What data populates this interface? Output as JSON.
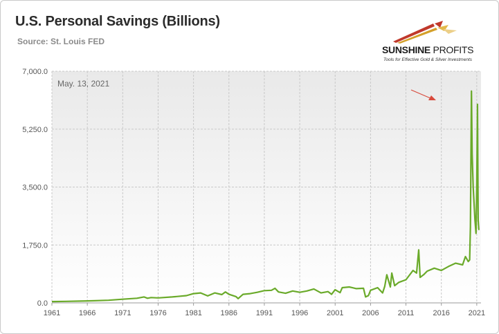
{
  "header": {
    "title": "U.S. Personal Savings (Billions)",
    "source": "Source: St. Louis FED"
  },
  "logo": {
    "name_bold": "SUNSHINE",
    "name_light": " PROFITS",
    "tagline": "Tools for Effective Gold & Silver Investments"
  },
  "colors": {
    "line": "#6aaa2a",
    "arrow": "#d84a3c",
    "grid": "#c8c8c8",
    "plot_bg_top": "#e9e9e9",
    "plot_bg_bottom": "#ffffff"
  },
  "chart_data": {
    "type": "line",
    "title": "U.S. Personal Savings (Billions)",
    "subtitle": "Source: St. Louis FED",
    "annotation": "May. 13, 2021",
    "xlabel": "",
    "ylabel": "",
    "x_ticks": [
      "1961",
      "1966",
      "1971",
      "1976",
      "1981",
      "1986",
      "1991",
      "1996",
      "2001",
      "2006",
      "2011",
      "2016",
      "2021"
    ],
    "y_ticks": [
      "0.0",
      "1,750.0",
      "3,500.0",
      "5,250.0",
      "7,000.0"
    ],
    "ylim": [
      0,
      7000
    ],
    "xlim": [
      1961,
      2021.6
    ],
    "grid": true,
    "series": [
      {
        "x": [
          1961,
          1963,
          1965,
          1967,
          1969,
          1971,
          1973,
          1974,
          1974.5,
          1975,
          1976,
          1978,
          1980,
          1981,
          1982,
          1983,
          1984,
          1985,
          1985.5,
          1986,
          1987,
          1987.3,
          1988,
          1989,
          1990,
          1991,
          1992,
          1992.5,
          1993,
          1994,
          1995,
          1996,
          1997,
          1998,
          1999,
          2000,
          2000.5,
          2001,
          2001.7,
          2002,
          2003,
          2004,
          2005,
          2005.3,
          2005.7,
          2006,
          2007,
          2007.7,
          2008,
          2008.3,
          2008.8,
          2009,
          2009.4,
          2010,
          2011,
          2012,
          2012.5,
          2012.8,
          2013,
          2013.5,
          2014,
          2015,
          2016,
          2017,
          2018,
          2019,
          2019.4,
          2019.8,
          2020.0,
          2020.1,
          2020.25,
          2020.35,
          2020.5,
          2020.75,
          2020.9,
          2021.0,
          2021.1,
          2021.2,
          2021.3
        ],
        "values": [
          40,
          45,
          55,
          65,
          80,
          110,
          140,
          180,
          140,
          160,
          150,
          180,
          220,
          280,
          300,
          210,
          300,
          250,
          330,
          260,
          190,
          130,
          260,
          280,
          320,
          370,
          380,
          440,
          330,
          290,
          360,
          320,
          360,
          420,
          300,
          340,
          260,
          400,
          310,
          460,
          480,
          430,
          440,
          180,
          220,
          380,
          460,
          300,
          500,
          850,
          480,
          900,
          520,
          620,
          700,
          980,
          900,
          1600,
          770,
          850,
          960,
          1050,
          980,
          1100,
          1200,
          1150,
          1400,
          1250,
          1300,
          2300,
          6400,
          4500,
          3500,
          2500,
          2100,
          3600,
          6000,
          2500,
          2200
        ]
      }
    ]
  }
}
